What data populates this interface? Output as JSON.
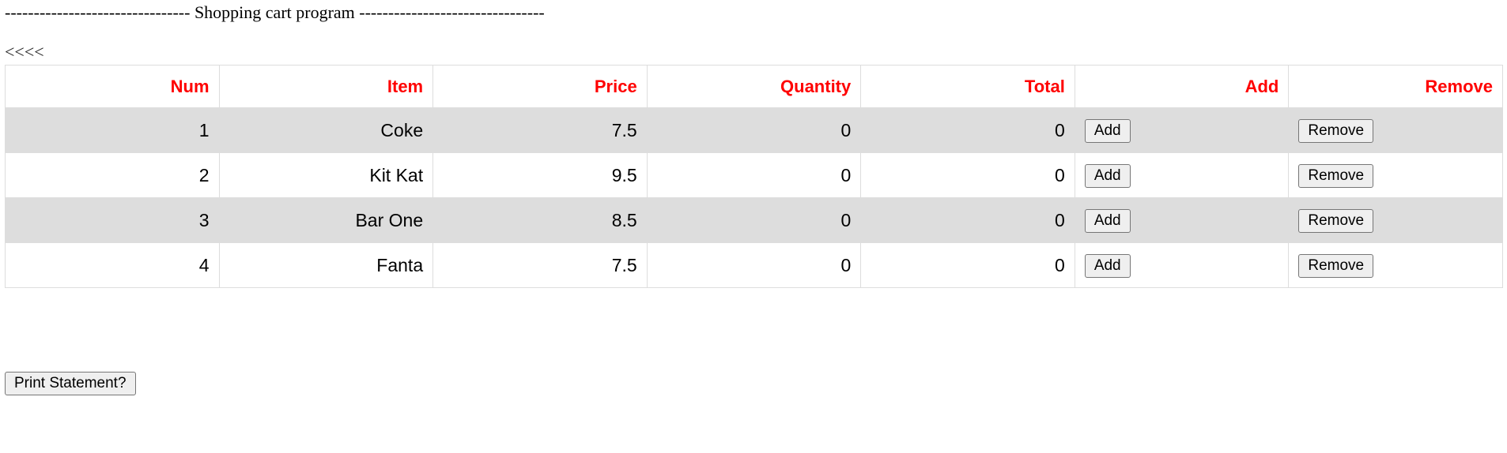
{
  "header": {
    "title": "-------------------------------- Shopping cart program --------------------------------",
    "back_link": "<<<<"
  },
  "table": {
    "headers": [
      "Num",
      "Item",
      "Price",
      "Quantity",
      "Total",
      "Add",
      "Remove"
    ],
    "rows": [
      {
        "num": "1",
        "item": "Coke",
        "price": "7.5",
        "quantity": "0",
        "total": "0",
        "add_label": "Add",
        "remove_label": "Remove"
      },
      {
        "num": "2",
        "item": "Kit Kat",
        "price": "9.5",
        "quantity": "0",
        "total": "0",
        "add_label": "Add",
        "remove_label": "Remove"
      },
      {
        "num": "3",
        "item": "Bar One",
        "price": "8.5",
        "quantity": "0",
        "total": "0",
        "add_label": "Add",
        "remove_label": "Remove"
      },
      {
        "num": "4",
        "item": "Fanta",
        "price": "7.5",
        "quantity": "0",
        "total": "0",
        "add_label": "Add",
        "remove_label": "Remove"
      }
    ]
  },
  "footer": {
    "print_label": "Print Statement?"
  },
  "colors": {
    "header_text": "#ff0000",
    "row_stripe": "#dddddd",
    "border": "#dddddd"
  }
}
